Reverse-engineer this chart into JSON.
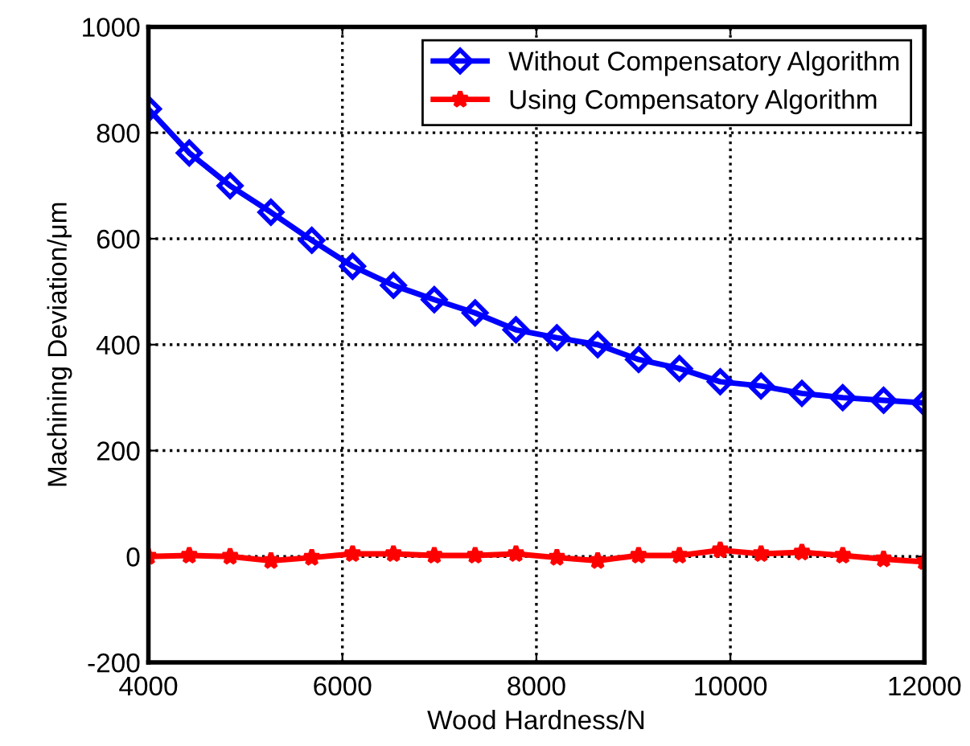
{
  "chart_data": {
    "type": "line",
    "xlabel": "Wood Hardness/N",
    "ylabel": "Machining Deviation/μm",
    "x": [
      4000,
      4421,
      4842,
      5263,
      5684,
      6105,
      6526,
      6947,
      7368,
      7789,
      8211,
      8632,
      9053,
      9474,
      9895,
      10316,
      10737,
      11158,
      11579,
      12000
    ],
    "series": [
      {
        "name": "Without Compensatory Algorithm",
        "color": "#0000ff",
        "marker": "diamond",
        "values": [
          845,
          762,
          700,
          650,
          597,
          548,
          512,
          485,
          460,
          428,
          413,
          400,
          372,
          355,
          330,
          322,
          308,
          300,
          295,
          290
        ]
      },
      {
        "name": "Using Compensatory Algorithm",
        "color": "#ff0000",
        "marker": "star",
        "values": [
          0,
          2,
          0,
          -8,
          -2,
          5,
          5,
          2,
          2,
          5,
          -2,
          -8,
          2,
          2,
          12,
          5,
          8,
          2,
          -5,
          -10
        ]
      }
    ],
    "xlim": [
      4000,
      12000
    ],
    "xticks": [
      4000,
      6000,
      8000,
      10000,
      12000
    ],
    "ylim": [
      -200,
      1000
    ],
    "yticks": [
      -200,
      0,
      200,
      400,
      600,
      800,
      1000
    ],
    "grid": true,
    "legend": "top right",
    "line_style": "solid"
  }
}
